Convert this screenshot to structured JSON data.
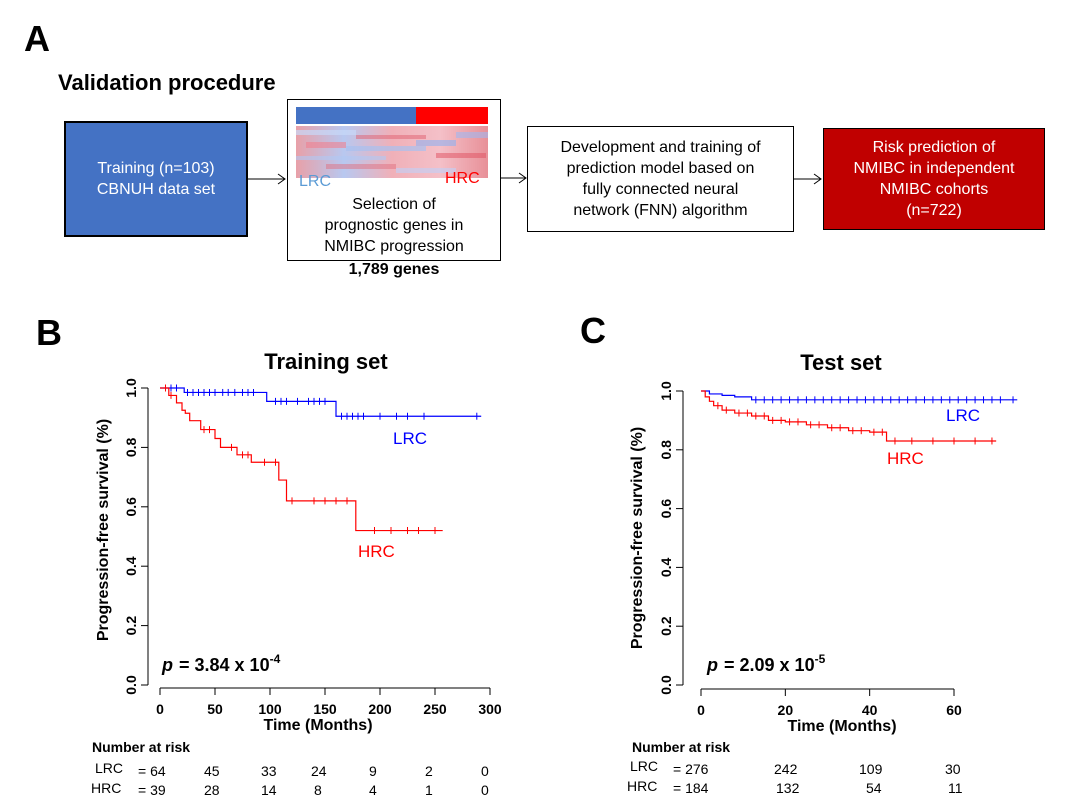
{
  "panel_a": {
    "letter": "A",
    "heading": "Validation procedure",
    "box_training": "Training (n=103)\nCBNUH data set",
    "heatmap_label_lrc": "LRC",
    "heatmap_label_hrc": "HRC",
    "selection_text": "Selection of\nprognostic genes in\nNMIBC progression",
    "gene_count": "1,789 genes",
    "box_model": "Development and training of\nprediction model based on\nfully connected neural\nnetwork (FNN) algorithm",
    "box_risk": "Risk prediction of\nNMIBC in independent\nNMIBC cohorts\n(n=722)",
    "colors": {
      "training": "#4472c4",
      "risk": "#c00000",
      "lrc_bar": "#4472c4",
      "hrc_bar": "#ff0000"
    }
  },
  "chart_data": [
    {
      "type": "line",
      "panel_letter": "B",
      "title": "Training set",
      "xlabel": "Time (Months)",
      "ylabel": "Progression-free survival (%)",
      "xlim": [
        0,
        300
      ],
      "ylim": [
        0,
        1
      ],
      "x_ticks": [
        0,
        50,
        100,
        150,
        200,
        250,
        300
      ],
      "y_ticks": [
        "0.0",
        "0.2",
        "0.4",
        "0.6",
        "0.8",
        "1.0"
      ],
      "p_label": "p",
      "p_value": "= 3.84 x 10",
      "p_exponent": "-4",
      "series": [
        {
          "name": "LRC",
          "color": "#0000ff",
          "x": [
            0,
            17,
            22,
            90,
            97,
            160,
            292
          ],
          "y": [
            1.0,
            1.0,
            0.985,
            0.985,
            0.955,
            0.905,
            0.905
          ],
          "censor_x": [
            5,
            10,
            15,
            25,
            30,
            35,
            40,
            45,
            50,
            57,
            62,
            68,
            75,
            80,
            85,
            105,
            110,
            115,
            125,
            135,
            140,
            145,
            150,
            165,
            170,
            175,
            180,
            185,
            200,
            215,
            225,
            240,
            288
          ]
        },
        {
          "name": "HRC",
          "color": "#ff0000",
          "x": [
            0,
            8,
            15,
            20,
            23,
            27,
            33,
            37,
            50,
            55,
            70,
            83,
            108,
            115,
            178,
            257
          ],
          "y": [
            1.0,
            0.975,
            0.95,
            0.925,
            0.915,
            0.89,
            0.89,
            0.86,
            0.83,
            0.8,
            0.775,
            0.75,
            0.69,
            0.62,
            0.52,
            0.52
          ],
          "censor_x": [
            5,
            10,
            40,
            45,
            65,
            75,
            80,
            95,
            105,
            120,
            140,
            150,
            160,
            170,
            195,
            210,
            225,
            235,
            250
          ]
        }
      ],
      "risk_table": {
        "heading": "Number at risk",
        "rows": [
          {
            "label": "LRC",
            "prefix": "= 64",
            "values": [
              "45",
              "33",
              "24",
              "9",
              "2",
              "0"
            ]
          },
          {
            "label": "HRC",
            "prefix": "= 39",
            "values": [
              "28",
              "14",
              "8",
              "4",
              "1",
              "0"
            ]
          }
        ]
      }
    },
    {
      "type": "line",
      "panel_letter": "C",
      "title": "Test set",
      "xlabel": "Time (Months)",
      "ylabel": "Progression-free survival (%)",
      "xlim": [
        0,
        60
      ],
      "ylim": [
        0,
        1
      ],
      "x_ticks": [
        0,
        20,
        40,
        60
      ],
      "y_ticks": [
        "0.0",
        "0.2",
        "0.4",
        "0.6",
        "0.8",
        "1.0"
      ],
      "p_label": "p",
      "p_value": "= 2.09 x 10",
      "p_exponent": "-5",
      "series": [
        {
          "name": "LRC",
          "color": "#0000ff",
          "x": [
            0,
            2,
            5,
            8,
            12,
            75
          ],
          "y": [
            1.0,
            0.99,
            0.985,
            0.98,
            0.97,
            0.97
          ],
          "censor_x": [
            13,
            15,
            17,
            19,
            21,
            23,
            25,
            27,
            29,
            31,
            33,
            35,
            37,
            39,
            41,
            43,
            45,
            47,
            49,
            51,
            53,
            55,
            57,
            59,
            61,
            63,
            65,
            67,
            69,
            71,
            74
          ]
        },
        {
          "name": "HRC",
          "color": "#ff0000",
          "x": [
            0,
            1,
            2,
            3,
            5,
            8,
            12,
            16,
            20,
            25,
            30,
            35,
            40,
            44,
            70
          ],
          "y": [
            1.0,
            0.98,
            0.965,
            0.95,
            0.935,
            0.925,
            0.915,
            0.9,
            0.895,
            0.885,
            0.875,
            0.865,
            0.86,
            0.83,
            0.83
          ],
          "censor_x": [
            4,
            6,
            9,
            11,
            13,
            15,
            17,
            19,
            21,
            23,
            26,
            28,
            31,
            33,
            36,
            38,
            41,
            43,
            46,
            50,
            55,
            60,
            65,
            69
          ]
        }
      ],
      "risk_table": {
        "heading": "Number at risk",
        "rows": [
          {
            "label": "LRC",
            "prefix": "= 276",
            "values": [
              "242",
              "109",
              "30"
            ]
          },
          {
            "label": "HRC",
            "prefix": "= 184",
            "values": [
              "132",
              "54",
              "11"
            ]
          }
        ]
      }
    }
  ]
}
